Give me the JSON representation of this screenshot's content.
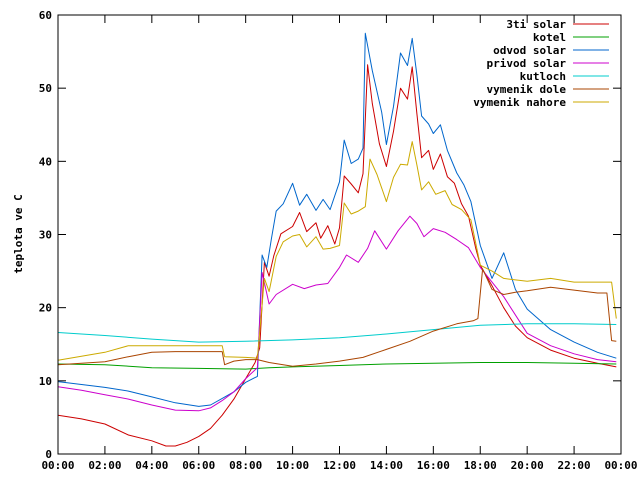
{
  "chart_data": {
    "type": "line",
    "title": "",
    "xlabel": "",
    "ylabel": "teplota ve C",
    "xlim": [
      0,
      24
    ],
    "ylim": [
      0,
      60
    ],
    "xticks": [
      0,
      2,
      4,
      6,
      8,
      10,
      12,
      14,
      16,
      18,
      20,
      22,
      24
    ],
    "xtick_labels": [
      "00:00",
      "02:00",
      "04:00",
      "06:00",
      "08:00",
      "10:00",
      "12:00",
      "14:00",
      "16:00",
      "18:00",
      "20:00",
      "22:00",
      "00:00"
    ],
    "yticks": [
      0,
      10,
      20,
      30,
      40,
      50,
      60
    ],
    "ytick_labels": [
      "0",
      "10",
      "20",
      "30",
      "40",
      "50",
      "60"
    ],
    "grid": false,
    "legend_position": "top-right",
    "series": [
      {
        "name": "3ti solar",
        "color": "#cc0000",
        "points": [
          [
            0,
            5.3
          ],
          [
            1,
            4.8
          ],
          [
            2,
            4.1
          ],
          [
            3,
            2.6
          ],
          [
            4,
            1.8
          ],
          [
            4.6,
            1.1
          ],
          [
            5,
            1.1
          ],
          [
            5.5,
            1.6
          ],
          [
            6,
            2.4
          ],
          [
            6.5,
            3.5
          ],
          [
            7,
            5.3
          ],
          [
            7.5,
            7.5
          ],
          [
            8,
            10.3
          ],
          [
            8.4,
            12.5
          ],
          [
            8.6,
            14.5
          ],
          [
            8.8,
            26.2
          ],
          [
            9,
            24.3
          ],
          [
            9.2,
            27.1
          ],
          [
            9.5,
            30.1
          ],
          [
            10,
            31.1
          ],
          [
            10.3,
            33
          ],
          [
            10.6,
            30.4
          ],
          [
            11,
            31.6
          ],
          [
            11.2,
            29.5
          ],
          [
            11.5,
            31.2
          ],
          [
            11.8,
            28.7
          ],
          [
            12,
            30.9
          ],
          [
            12.2,
            38
          ],
          [
            12.5,
            36.9
          ],
          [
            12.8,
            35.7
          ],
          [
            13,
            38.3
          ],
          [
            13.2,
            53.2
          ],
          [
            13.4,
            47.9
          ],
          [
            13.7,
            42.4
          ],
          [
            14,
            39.3
          ],
          [
            14.3,
            44.1
          ],
          [
            14.6,
            50
          ],
          [
            14.9,
            48.5
          ],
          [
            15.1,
            52.9
          ],
          [
            15.3,
            46.5
          ],
          [
            15.5,
            40.5
          ],
          [
            15.8,
            41.5
          ],
          [
            16,
            38.9
          ],
          [
            16.3,
            41
          ],
          [
            16.6,
            37.9
          ],
          [
            16.9,
            37
          ],
          [
            17.2,
            34.2
          ],
          [
            17.5,
            32.5
          ],
          [
            17.8,
            28.2
          ],
          [
            18,
            25.8
          ],
          [
            18.5,
            23
          ],
          [
            19,
            20
          ],
          [
            19.5,
            17.5
          ],
          [
            20,
            15.9
          ],
          [
            21,
            14.2
          ],
          [
            22,
            13.1
          ],
          [
            23,
            12.4
          ],
          [
            23.8,
            11.9
          ]
        ]
      },
      {
        "name": "kotel",
        "color": "#00a000",
        "points": [
          [
            0,
            12.3
          ],
          [
            2,
            12.2
          ],
          [
            4,
            11.8
          ],
          [
            6,
            11.7
          ],
          [
            8,
            11.6
          ],
          [
            9,
            11.8
          ],
          [
            10,
            11.9
          ],
          [
            12,
            12.1
          ],
          [
            14,
            12.3
          ],
          [
            16,
            12.4
          ],
          [
            18,
            12.5
          ],
          [
            20,
            12.5
          ],
          [
            22,
            12.4
          ],
          [
            23.8,
            12.3
          ]
        ]
      },
      {
        "name": "odvod solar",
        "color": "#0066cc",
        "points": [
          [
            0,
            9.9
          ],
          [
            1,
            9.5
          ],
          [
            2,
            9.1
          ],
          [
            3,
            8.6
          ],
          [
            4,
            7.8
          ],
          [
            5,
            7
          ],
          [
            6,
            6.5
          ],
          [
            6.5,
            6.7
          ],
          [
            7,
            7.6
          ],
          [
            7.5,
            8.5
          ],
          [
            8,
            9.8
          ],
          [
            8.5,
            10.6
          ],
          [
            8.7,
            27.2
          ],
          [
            8.9,
            25.5
          ],
          [
            9.1,
            29.5
          ],
          [
            9.3,
            33.2
          ],
          [
            9.6,
            34.2
          ],
          [
            10,
            37
          ],
          [
            10.3,
            34
          ],
          [
            10.6,
            35.5
          ],
          [
            11,
            33.3
          ],
          [
            11.3,
            34.8
          ],
          [
            11.6,
            33.4
          ],
          [
            12,
            37.2
          ],
          [
            12.2,
            42.9
          ],
          [
            12.5,
            39.7
          ],
          [
            12.8,
            40.3
          ],
          [
            13,
            41.8
          ],
          [
            13.1,
            57.5
          ],
          [
            13.4,
            52.4
          ],
          [
            13.8,
            46.7
          ],
          [
            14,
            42.3
          ],
          [
            14.3,
            47.5
          ],
          [
            14.6,
            54.8
          ],
          [
            14.9,
            53.1
          ],
          [
            15.1,
            56.8
          ],
          [
            15.3,
            51.8
          ],
          [
            15.5,
            46.2
          ],
          [
            15.8,
            45.1
          ],
          [
            16,
            43.8
          ],
          [
            16.3,
            45
          ],
          [
            16.6,
            41.5
          ],
          [
            17,
            38.4
          ],
          [
            17.3,
            36.8
          ],
          [
            17.6,
            34.5
          ],
          [
            18,
            28.5
          ],
          [
            18.5,
            24
          ],
          [
            19,
            27.5
          ],
          [
            19.5,
            22.5
          ],
          [
            20,
            19.8
          ],
          [
            21,
            17
          ],
          [
            22,
            15.3
          ],
          [
            23,
            13.9
          ],
          [
            23.8,
            13.1
          ]
        ]
      },
      {
        "name": "privod solar",
        "color": "#cc00cc",
        "points": [
          [
            0,
            9.2
          ],
          [
            1,
            8.7
          ],
          [
            2,
            8.1
          ],
          [
            3,
            7.5
          ],
          [
            4,
            6.7
          ],
          [
            5,
            6
          ],
          [
            6,
            5.9
          ],
          [
            6.5,
            6.3
          ],
          [
            7,
            7.3
          ],
          [
            7.5,
            8.5
          ],
          [
            8,
            10.3
          ],
          [
            8.5,
            11.8
          ],
          [
            8.7,
            24.8
          ],
          [
            9,
            20.5
          ],
          [
            9.3,
            21.8
          ],
          [
            10,
            23.2
          ],
          [
            10.5,
            22.6
          ],
          [
            11,
            23.1
          ],
          [
            11.5,
            23.3
          ],
          [
            12,
            25.5
          ],
          [
            12.3,
            27.2
          ],
          [
            12.8,
            26.2
          ],
          [
            13.2,
            28.1
          ],
          [
            13.5,
            30.5
          ],
          [
            14,
            28
          ],
          [
            14.5,
            30.5
          ],
          [
            15,
            32.5
          ],
          [
            15.3,
            31.5
          ],
          [
            15.6,
            29.7
          ],
          [
            16,
            30.8
          ],
          [
            16.5,
            30.3
          ],
          [
            17,
            29.3
          ],
          [
            17.5,
            28.2
          ],
          [
            18,
            25.5
          ],
          [
            19,
            21.5
          ],
          [
            20,
            16.5
          ],
          [
            21,
            14.8
          ],
          [
            22,
            13.7
          ],
          [
            23,
            12.9
          ],
          [
            23.8,
            12.6
          ]
        ]
      },
      {
        "name": "kutloch",
        "color": "#00cccc",
        "points": [
          [
            0,
            16.6
          ],
          [
            2,
            16.2
          ],
          [
            4,
            15.7
          ],
          [
            6,
            15.3
          ],
          [
            8,
            15.4
          ],
          [
            10,
            15.6
          ],
          [
            12,
            15.9
          ],
          [
            14,
            16.4
          ],
          [
            16,
            17
          ],
          [
            18,
            17.6
          ],
          [
            20,
            17.8
          ],
          [
            22,
            17.8
          ],
          [
            23.8,
            17.7
          ]
        ]
      },
      {
        "name": "vymenik dole",
        "color": "#aa4400",
        "points": [
          [
            0,
            12.2
          ],
          [
            2,
            12.6
          ],
          [
            3,
            13.3
          ],
          [
            4,
            13.9
          ],
          [
            5,
            14
          ],
          [
            6,
            14
          ],
          [
            7,
            14
          ],
          [
            7.1,
            12.2
          ],
          [
            7.5,
            12.7
          ],
          [
            8,
            12.9
          ],
          [
            8.5,
            12.9
          ],
          [
            9,
            12.5
          ],
          [
            10,
            12
          ],
          [
            11,
            12.3
          ],
          [
            12,
            12.7
          ],
          [
            13,
            13.2
          ],
          [
            14,
            14.3
          ],
          [
            15,
            15.4
          ],
          [
            16,
            16.8
          ],
          [
            17,
            17.8
          ],
          [
            17.7,
            18.2
          ],
          [
            17.9,
            18.5
          ],
          [
            18.1,
            25.3
          ],
          [
            18.5,
            22.5
          ],
          [
            19,
            21.8
          ],
          [
            19.5,
            22.1
          ],
          [
            20,
            22.3
          ],
          [
            21,
            22.8
          ],
          [
            22,
            22.4
          ],
          [
            23,
            22
          ],
          [
            23.4,
            22
          ],
          [
            23.6,
            15.5
          ],
          [
            23.8,
            15.4
          ]
        ]
      },
      {
        "name": "vymenik nahore",
        "color": "#ccaa00",
        "points": [
          [
            0,
            12.8
          ],
          [
            2,
            13.9
          ],
          [
            3,
            14.8
          ],
          [
            4,
            14.8
          ],
          [
            5,
            14.8
          ],
          [
            6,
            14.8
          ],
          [
            7,
            14.8
          ],
          [
            7.1,
            13.3
          ],
          [
            8,
            13.2
          ],
          [
            8.5,
            13.1
          ],
          [
            8.8,
            24
          ],
          [
            9,
            22.2
          ],
          [
            9.3,
            27
          ],
          [
            9.6,
            29
          ],
          [
            10,
            29.8
          ],
          [
            10.3,
            30
          ],
          [
            10.6,
            28.3
          ],
          [
            11,
            29.7
          ],
          [
            11.3,
            28
          ],
          [
            11.6,
            28.1
          ],
          [
            12,
            28.5
          ],
          [
            12.2,
            34.3
          ],
          [
            12.5,
            32.8
          ],
          [
            12.8,
            33.2
          ],
          [
            13.1,
            33.8
          ],
          [
            13.3,
            40.3
          ],
          [
            13.6,
            38.2
          ],
          [
            14,
            34.5
          ],
          [
            14.3,
            37.8
          ],
          [
            14.6,
            39.6
          ],
          [
            14.9,
            39.5
          ],
          [
            15.1,
            42.7
          ],
          [
            15.3,
            39.5
          ],
          [
            15.5,
            36.1
          ],
          [
            15.8,
            37.2
          ],
          [
            16.1,
            35.5
          ],
          [
            16.5,
            36
          ],
          [
            16.8,
            34.1
          ],
          [
            17.2,
            33.4
          ],
          [
            17.6,
            32
          ],
          [
            18,
            25.8
          ],
          [
            18.5,
            25
          ],
          [
            19,
            24
          ],
          [
            19.5,
            23.8
          ],
          [
            20,
            23.6
          ],
          [
            21,
            24
          ],
          [
            22,
            23.5
          ],
          [
            23.6,
            23.5
          ],
          [
            23.8,
            18.5
          ]
        ]
      }
    ]
  }
}
